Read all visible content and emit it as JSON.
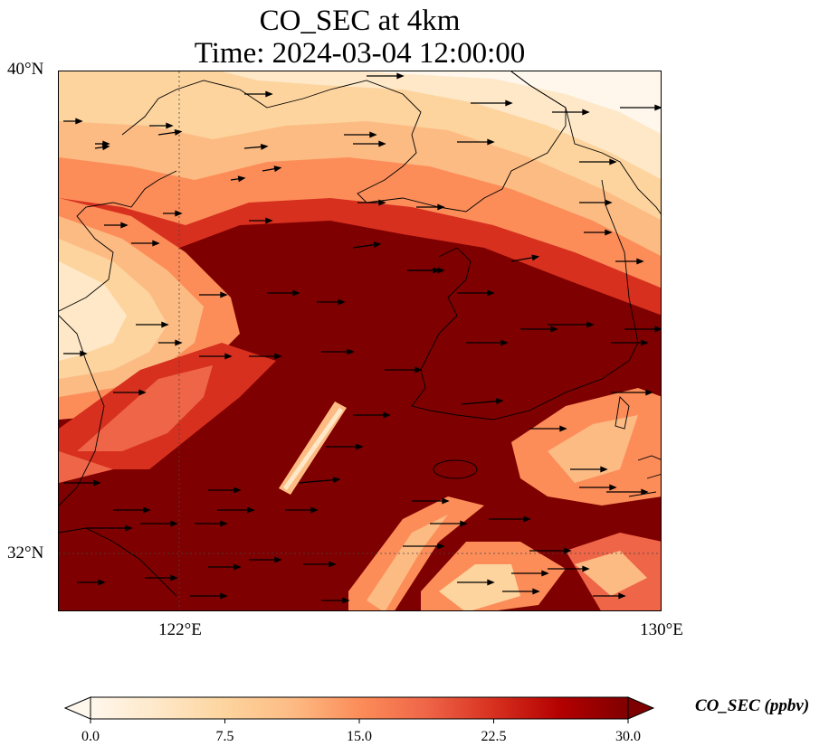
{
  "title_line1": "CO_SEC at 4km",
  "title_line2": "Time: 2024-03-04 12:00:00",
  "map": {
    "lat_range": [
      31.0,
      40.0
    ],
    "lon_range": [
      120.0,
      130.0
    ],
    "lat_labels": [
      "40°N",
      "32°N"
    ],
    "lon_labels": [
      "122°E",
      "130°E"
    ],
    "gridlines": "dotted",
    "field": "CO_SEC",
    "features": [
      "coastlines",
      "wind vectors"
    ]
  },
  "colorbar": {
    "label": "CO_SEC (ppbv)",
    "min": 0.0,
    "max": 30.0,
    "ticks": [
      "0.0",
      "7.5",
      "15.0",
      "22.5",
      "30.0"
    ],
    "colormap": "OrRd",
    "colors": [
      "#fff7ec",
      "#fee8c8",
      "#fdd49e",
      "#fdbb84",
      "#fc8d59",
      "#ef6548",
      "#d7301f",
      "#b30000",
      "#7f0000"
    ]
  }
}
